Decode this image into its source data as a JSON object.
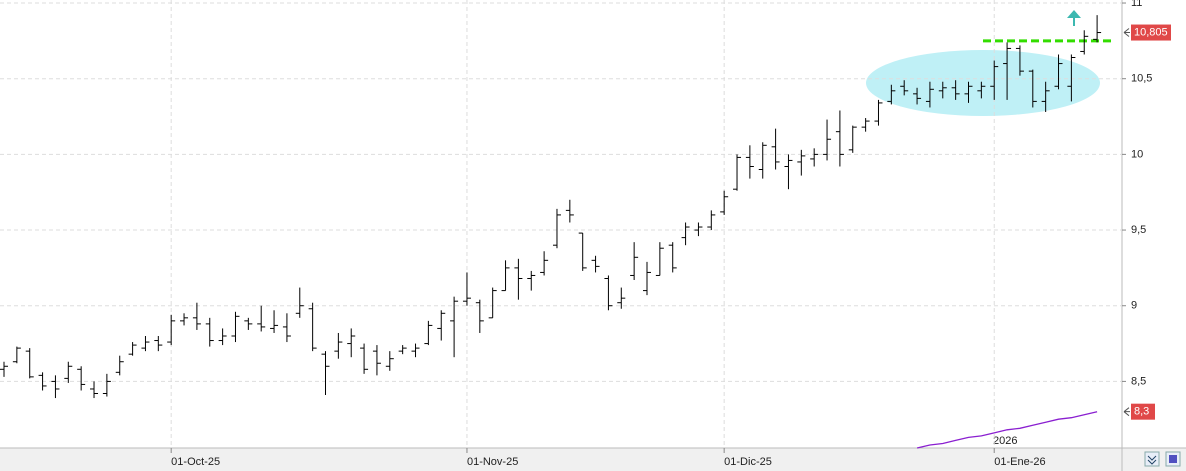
{
  "chart_data": {
    "type": "ohlc",
    "categories": [
      null,
      null,
      null,
      null,
      null,
      null,
      null,
      null,
      null,
      null,
      null,
      null,
      null,
      "01-Oct-25",
      null,
      null,
      null,
      null,
      null,
      null,
      null,
      null,
      null,
      null,
      null,
      null,
      null,
      null,
      null,
      null,
      null,
      null,
      null,
      null,
      null,
      null,
      "01-Nov-25",
      null,
      null,
      null,
      null,
      null,
      null,
      null,
      null,
      null,
      null,
      null,
      null,
      null,
      null,
      null,
      null,
      null,
      null,
      null,
      "01-Dic-25",
      null,
      null,
      null,
      null,
      null,
      null,
      null,
      null,
      null,
      null,
      null,
      null,
      null,
      null,
      null,
      null,
      null,
      null,
      null,
      null,
      "01-Ene-26",
      null,
      null,
      null,
      null,
      null,
      null,
      null,
      null
    ],
    "open": [
      8.58,
      8.63,
      8.7,
      8.54,
      8.5,
      8.52,
      8.58,
      8.45,
      8.42,
      8.56,
      8.68,
      8.72,
      8.77,
      8.76,
      8.9,
      8.92,
      8.88,
      8.77,
      8.8,
      8.9,
      8.88,
      8.85,
      8.86,
      8.95,
      8.98,
      8.68,
      8.7,
      8.75,
      8.72,
      8.7,
      8.6,
      8.7,
      8.7,
      8.75,
      8.85,
      8.9,
      9.03,
      9.02,
      8.92,
      9.1,
      9.25,
      9.18,
      9.22,
      9.4,
      9.63,
      9.48,
      9.3,
      9.18,
      9.02,
      9.2,
      9.1,
      9.2,
      9.4,
      9.45,
      9.5,
      9.52,
      9.62,
      9.77,
      9.98,
      9.9,
      10.05,
      9.92,
      9.95,
      9.97,
      10.0,
      10.15,
      10.03,
      10.18,
      10.22,
      10.35,
      10.45,
      10.4,
      10.35,
      10.42,
      10.44,
      10.4,
      10.42,
      10.45,
      10.6,
      10.7,
      10.55,
      10.35,
      10.45,
      10.45,
      10.68,
      10.76
    ],
    "high": [
      8.63,
      8.73,
      8.72,
      8.56,
      8.54,
      8.63,
      8.6,
      8.5,
      8.55,
      8.67,
      8.76,
      8.8,
      8.8,
      8.94,
      8.95,
      9.02,
      8.92,
      8.85,
      8.96,
      8.92,
      9.0,
      8.97,
      8.95,
      9.12,
      9.02,
      8.7,
      8.82,
      8.85,
      8.75,
      8.74,
      8.7,
      8.74,
      8.75,
      8.9,
      8.97,
      9.06,
      9.22,
      9.04,
      9.12,
      9.3,
      9.31,
      9.23,
      9.36,
      9.64,
      9.7,
      9.48,
      9.33,
      9.2,
      9.12,
      9.42,
      9.29,
      9.42,
      9.42,
      9.55,
      9.55,
      9.63,
      9.76,
      10.0,
      10.06,
      10.08,
      10.17,
      10.0,
      10.03,
      10.04,
      10.23,
      10.29,
      10.19,
      10.24,
      10.36,
      10.46,
      10.49,
      10.44,
      10.48,
      10.48,
      10.49,
      10.48,
      10.48,
      10.62,
      10.74,
      10.72,
      10.56,
      10.48,
      10.66,
      10.66,
      10.82,
      10.92
    ],
    "low": [
      8.53,
      8.62,
      8.52,
      8.44,
      8.39,
      8.49,
      8.44,
      8.39,
      8.4,
      8.54,
      8.67,
      8.7,
      8.7,
      8.74,
      8.87,
      8.84,
      8.73,
      8.74,
      8.76,
      8.84,
      8.83,
      8.82,
      8.76,
      8.92,
      8.7,
      8.41,
      8.65,
      8.66,
      8.55,
      8.54,
      8.57,
      8.68,
      8.66,
      8.74,
      8.77,
      8.66,
      9.0,
      8.82,
      8.92,
      9.1,
      9.04,
      9.1,
      9.2,
      9.38,
      9.55,
      9.23,
      9.22,
      8.97,
      8.98,
      9.17,
      9.07,
      9.2,
      9.22,
      9.4,
      9.46,
      9.5,
      9.6,
      9.76,
      9.84,
      9.84,
      9.9,
      9.77,
      9.86,
      9.92,
      9.96,
      9.92,
      10.01,
      10.15,
      10.19,
      10.33,
      10.39,
      10.33,
      10.31,
      10.37,
      10.36,
      10.34,
      10.37,
      10.36,
      10.36,
      10.52,
      10.31,
      10.28,
      10.43,
      10.35,
      10.66,
      10.74
    ],
    "close": [
      8.6,
      8.72,
      8.53,
      8.47,
      8.45,
      8.6,
      8.48,
      8.42,
      8.5,
      8.63,
      8.74,
      8.76,
      8.74,
      8.9,
      8.92,
      8.88,
      8.77,
      8.8,
      8.93,
      8.88,
      8.86,
      8.87,
      8.8,
      9.0,
      8.72,
      8.6,
      8.76,
      8.8,
      8.58,
      8.62,
      8.65,
      8.72,
      8.72,
      8.87,
      8.95,
      9.03,
      9.05,
      8.9,
      9.1,
      9.25,
      9.18,
      9.2,
      9.3,
      9.6,
      9.6,
      9.25,
      9.26,
      9.0,
      9.05,
      9.32,
      9.22,
      9.38,
      9.25,
      9.52,
      9.52,
      9.6,
      9.72,
      9.98,
      9.92,
      10.06,
      9.95,
      9.96,
      9.99,
      10.0,
      10.1,
      10.0,
      10.18,
      10.22,
      10.34,
      10.42,
      10.42,
      10.37,
      10.43,
      10.44,
      10.4,
      10.45,
      10.45,
      10.58,
      10.7,
      10.55,
      10.35,
      10.42,
      10.6,
      10.64,
      10.78,
      10.805
    ],
    "color": "#000000",
    "ylim": [
      8.06,
      11.02
    ],
    "yticks": [
      11,
      {
        "value": 10.5,
        "label": "10,5"
      },
      10,
      {
        "value": 9.5,
        "label": "9,5"
      },
      9,
      {
        "value": 8.5,
        "label": "8,5"
      }
    ],
    "grid": true,
    "price_labels": [
      {
        "value": 10.805,
        "label": "10,805"
      },
      {
        "value": 8.3,
        "label": "8,3"
      }
    ],
    "price_label_color": "#e04848",
    "level_line": {
      "value": 10.75,
      "color": "#33dd00"
    },
    "line_series": {
      "color": "#8a1fd0",
      "values": [
        null,
        null,
        null,
        null,
        null,
        null,
        null,
        null,
        null,
        null,
        null,
        null,
        null,
        null,
        null,
        null,
        null,
        null,
        null,
        null,
        null,
        null,
        null,
        null,
        null,
        null,
        null,
        null,
        null,
        null,
        null,
        null,
        null,
        null,
        null,
        null,
        null,
        null,
        null,
        null,
        null,
        null,
        null,
        null,
        null,
        null,
        null,
        null,
        null,
        null,
        null,
        null,
        null,
        null,
        null,
        null,
        null,
        null,
        null,
        null,
        null,
        null,
        null,
        null,
        null,
        null,
        null,
        null,
        null,
        null,
        null,
        8.06,
        8.08,
        8.09,
        8.11,
        8.13,
        8.14,
        8.16,
        8.18,
        8.19,
        8.21,
        8.23,
        8.25,
        8.26,
        8.28,
        8.3
      ]
    },
    "year_label": "2026"
  }
}
